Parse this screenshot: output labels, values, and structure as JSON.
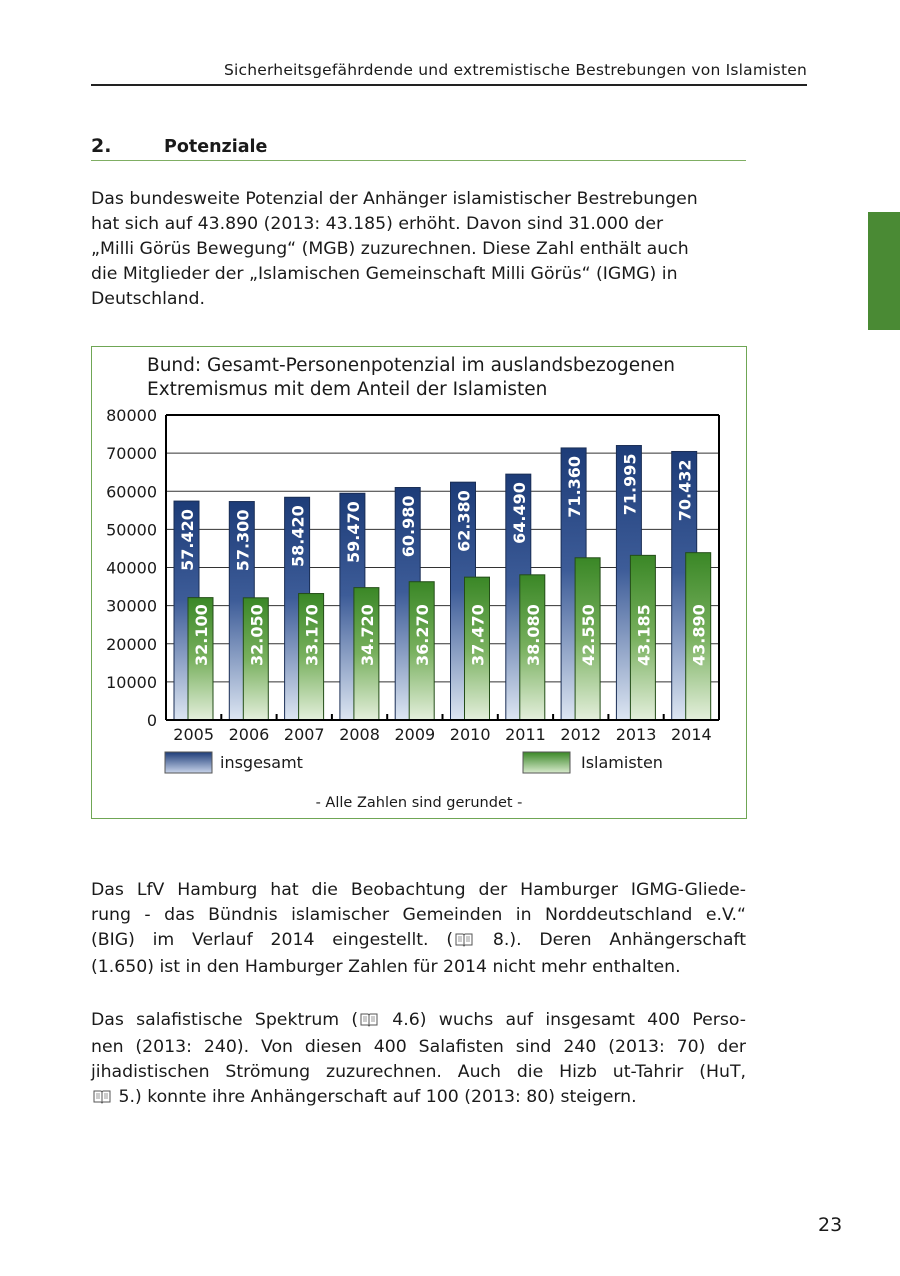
{
  "header": {
    "running_title": "Sicherheitsgefährdende und extremistische Bestrebungen von Islamisten"
  },
  "section": {
    "number": "2.",
    "title": "Potenziale"
  },
  "intro_lines": [
    "Das bundesweite Potenzial der Anhänger islamistischer Bestrebungen",
    "hat sich auf 43.890 (2013: 43.185) erhöht. Davon sind 31.000 der",
    "„Milli Görüs Bewegung“ (MGB) zuzurechnen. Diese Zahl enthält auch",
    "die Mitglieder der „Islamischen Gemeinschaft Milli Görüs“ (IGMG) in",
    "Deutschland."
  ],
  "para2_lines": [
    {
      "a": "Das LfV Hamburg hat die Beobachtung der Hamburger IGMG-Gliede-"
    },
    {
      "a": "rung - das Bündnis islamischer Gemeinden in Norddeutschland e.V.“"
    },
    {
      "a": "(BIG) im Verlauf 2014 eingestellt. (",
      "icon": "book-icon",
      "b": " 8.). Deren Anhängerschaft"
    },
    {
      "a": "(1.650) ist in den Hamburger Zahlen für 2014 nicht mehr enthalten."
    }
  ],
  "para3_lines": [
    {
      "a": "Das salafistische Spektrum (",
      "icon": "book-icon",
      "b": " 4.6) wuchs auf insgesamt 400 Perso-"
    },
    {
      "a": "nen (2013: 240). Von diesen 400 Salafisten sind 240 (2013: 70) der"
    },
    {
      "a": "jihadistischen Strömung zuzurechnen. Auch die Hizb ut-Tahrir (HuT,"
    },
    {
      "a": "",
      "icon": "book-icon",
      "b": " 5.) konnte ihre Anhängerschaft auf 100 (2013: 80) steigern."
    }
  ],
  "page_number": "23",
  "colors": {
    "accent": "#4a8a34",
    "blue_top": "#1f3f7a",
    "green_top": "#3f8a2a"
  },
  "chart_data": {
    "type": "bar",
    "title": [
      "Bund: Gesamt-Personenpotenzial im auslandsbezogenen",
      "Extremismus mit dem Anteil der Islamisten"
    ],
    "categories": [
      "2005",
      "2006",
      "2007",
      "2008",
      "2009",
      "2010",
      "2011",
      "2012",
      "2013",
      "2014"
    ],
    "series": [
      {
        "name": "insgesamt",
        "values": [
          57420,
          57300,
          58420,
          59470,
          60980,
          62380,
          64490,
          71360,
          71995,
          70432
        ],
        "labels": [
          "57.420",
          "57.300",
          "58.420",
          "59.470",
          "60.980",
          "62.380",
          "64.490",
          "71.360",
          "71.995",
          "70.432"
        ]
      },
      {
        "name": "Islamisten",
        "values": [
          32100,
          32050,
          33170,
          34720,
          36270,
          37470,
          38080,
          42550,
          43185,
          43890
        ],
        "labels": [
          "32.100",
          "32.050",
          "33.170",
          "34.720",
          "36.270",
          "37.470",
          "38.080",
          "42.550",
          "43.185",
          "43.890"
        ]
      }
    ],
    "yticks": [
      0,
      10000,
      20000,
      30000,
      40000,
      50000,
      60000,
      70000,
      80000
    ],
    "ylim": [
      0,
      80000
    ],
    "grid": true,
    "legend": "bottom",
    "footnote": "- Alle Zahlen sind gerundet -"
  }
}
